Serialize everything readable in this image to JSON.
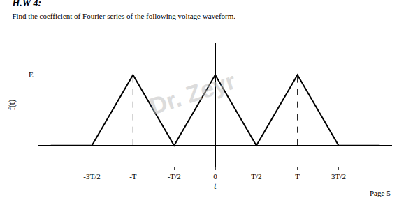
{
  "chart_data": {
    "type": "line",
    "title": "H.W 4:",
    "subtitle": "Find the coefficient of Fourier series of the following voltage waveform.",
    "xlabel": "t",
    "ylabel": "f(t)",
    "x": [
      -2.0,
      -1.5,
      -1.0,
      -0.5,
      0.0,
      0.5,
      1.0,
      1.5,
      2.0
    ],
    "values": [
      0,
      0,
      1,
      0,
      1,
      0,
      1,
      0,
      0
    ],
    "color": "#000000",
    "vlines": [
      {
        "x": -1.0,
        "y": [
          0,
          1
        ],
        "line_style": "dashed",
        "color": "#000000"
      },
      {
        "x": 1.0,
        "y": [
          0,
          1
        ],
        "line_style": "dashed",
        "color": "#000000"
      }
    ],
    "xlim": [
      -2.15,
      2.15
    ],
    "ylim": [
      -0.3,
      1.45
    ],
    "xticks": [
      {
        "value": -1.5,
        "label": "-3T/2"
      },
      {
        "value": -1.0,
        "label": "-T"
      },
      {
        "value": -0.5,
        "label": "-T/2"
      },
      0,
      {
        "value": 0.5,
        "label": "T/2"
      },
      {
        "value": 1.0,
        "label": "T"
      },
      {
        "value": 1.5,
        "label": "3T/2"
      }
    ],
    "yticks": [
      {
        "value": 1,
        "label": "E"
      }
    ],
    "grid": false,
    "watermark": "Dr. Zeyr",
    "page": "Page 5"
  }
}
